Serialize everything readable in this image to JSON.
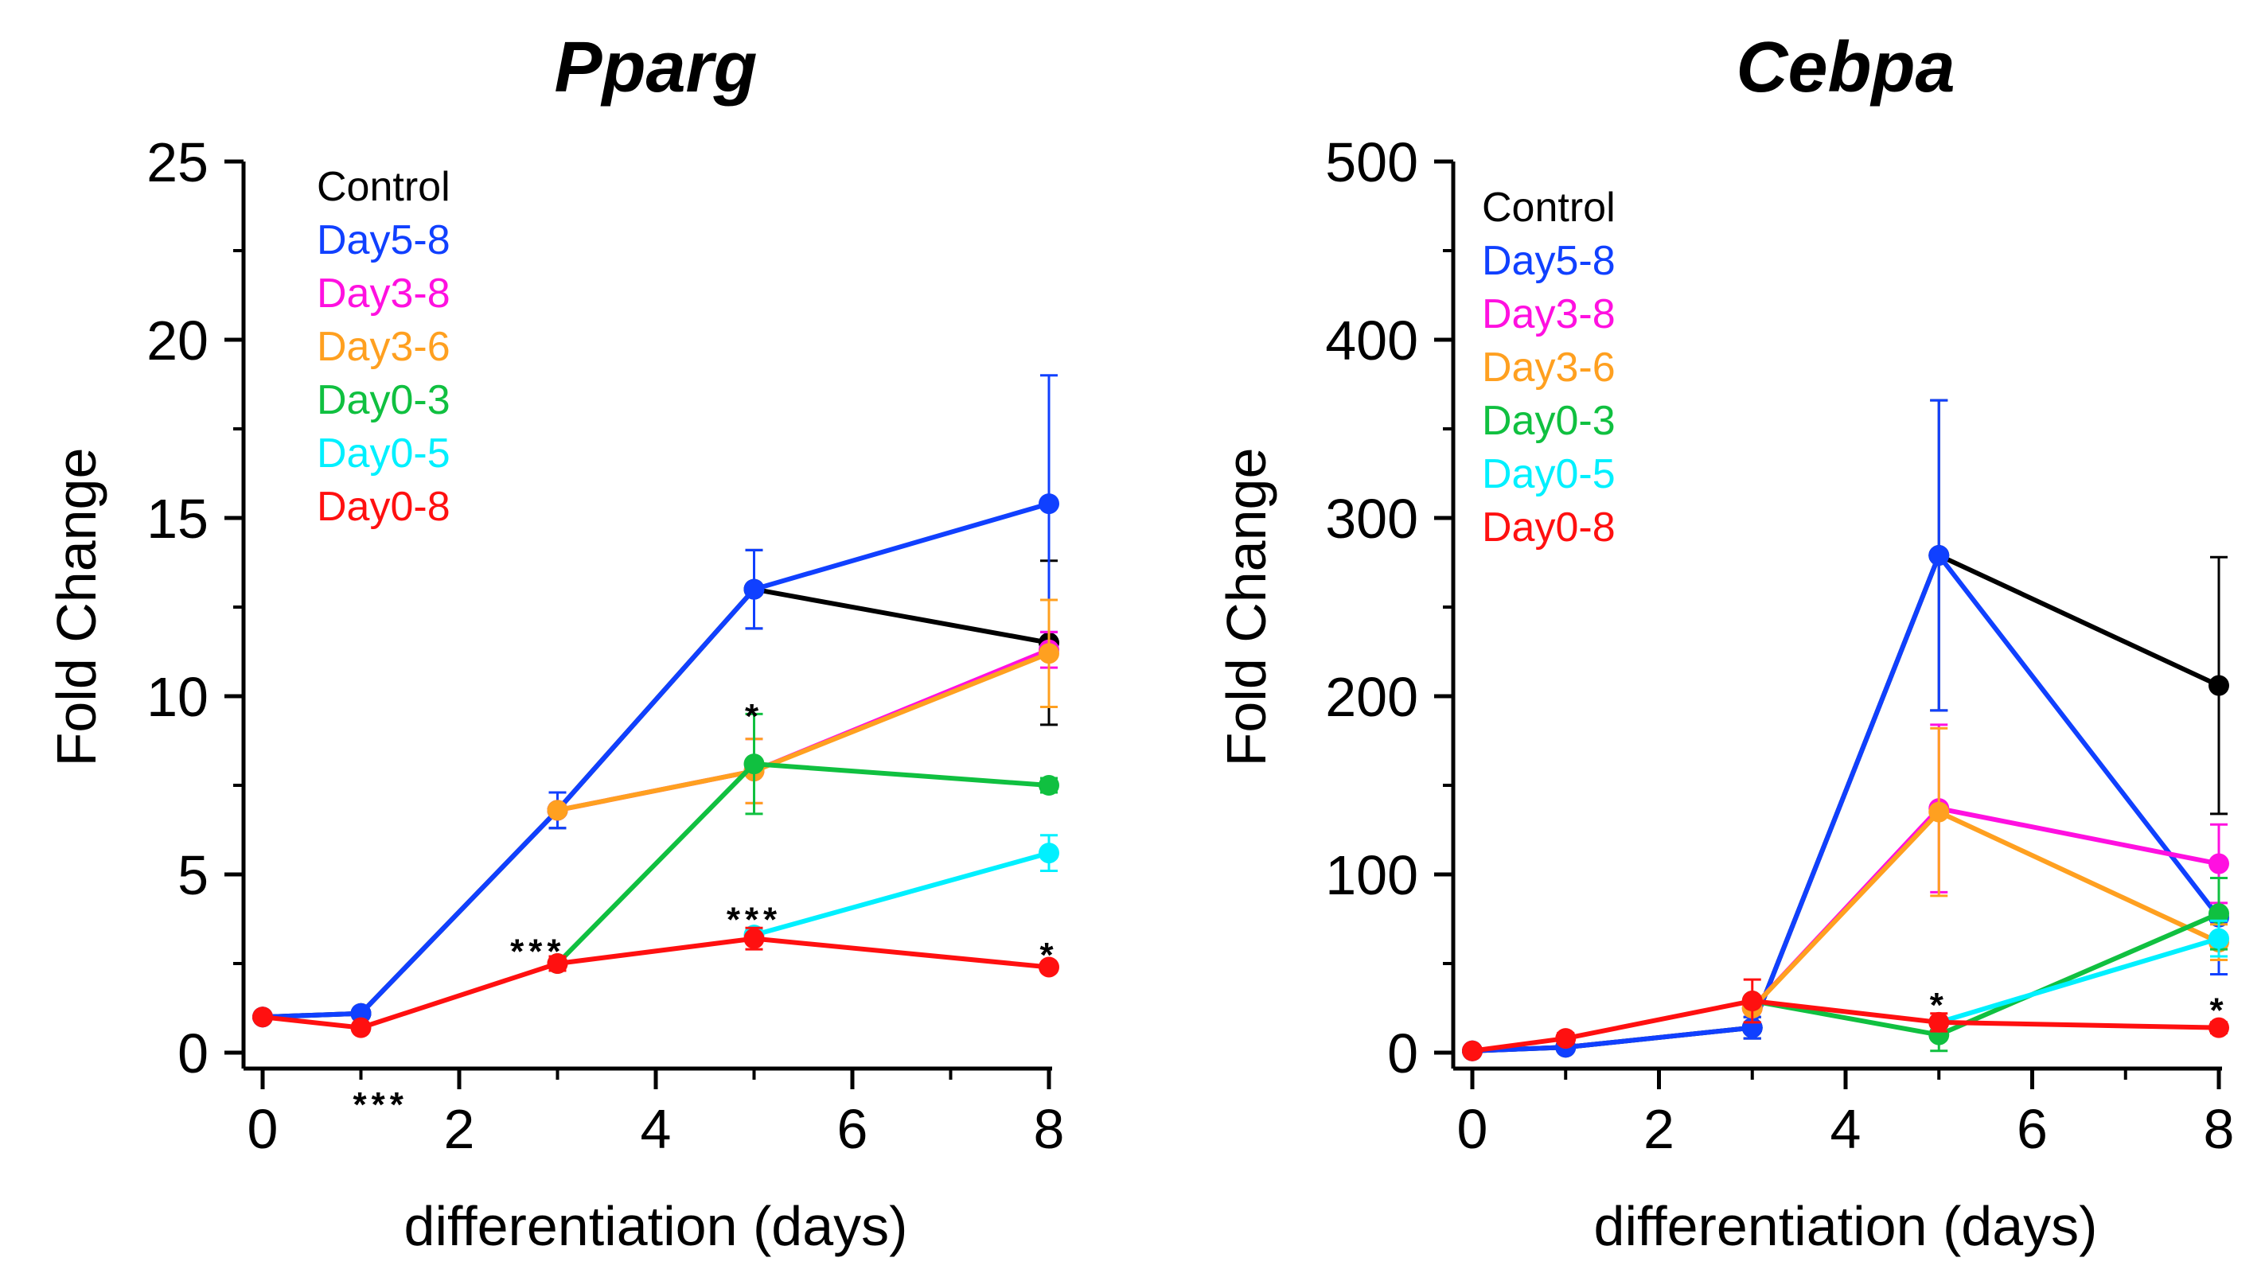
{
  "chart_data": [
    {
      "type": "line",
      "title": "Pparg",
      "xlabel": "differentiation (days)",
      "ylabel": "Fold Change",
      "xlim": [
        0,
        8
      ],
      "ylim": [
        0,
        25
      ],
      "xticks": [
        0,
        2,
        4,
        6,
        8
      ],
      "yticks": [
        0,
        5,
        10,
        15,
        20,
        25
      ],
      "grid": false,
      "legend_position": "top-left",
      "series": [
        {
          "name": "Control",
          "color": "#000000",
          "x": [
            0,
            1,
            3,
            5,
            8
          ],
          "y": [
            1,
            1.1,
            6.8,
            13,
            11.5
          ],
          "err": [
            0,
            0.1,
            0.5,
            1.1,
            2.3
          ]
        },
        {
          "name": "Day5-8",
          "color": "#1040ff",
          "x": [
            0,
            1,
            3,
            5,
            8
          ],
          "y": [
            1,
            1.1,
            6.8,
            13,
            15.4
          ],
          "err": [
            0,
            0.1,
            0.5,
            1.1,
            3.6
          ]
        },
        {
          "name": "Day3-8",
          "color": "#ff10e0",
          "x": [
            3,
            5,
            8
          ],
          "y": [
            6.8,
            7.9,
            11.3
          ],
          "err": [
            0,
            0.9,
            0.5
          ]
        },
        {
          "name": "Day3-6",
          "color": "#ffa020",
          "x": [
            3,
            5,
            8
          ],
          "y": [
            6.8,
            7.9,
            11.2
          ],
          "err": [
            0,
            0.9,
            1.5
          ]
        },
        {
          "name": "Day0-3",
          "color": "#10c040",
          "x": [
            3,
            5,
            8
          ],
          "y": [
            2.5,
            8.1,
            7.5
          ],
          "err": [
            0,
            1.4,
            0.2
          ]
        },
        {
          "name": "Day0-5",
          "color": "#00f0ff",
          "x": [
            5,
            8
          ],
          "y": [
            3.3,
            5.6
          ],
          "err": [
            0,
            0.5
          ]
        },
        {
          "name": "Day0-8",
          "color": "#ff1010",
          "x": [
            0,
            1,
            3,
            5,
            8
          ],
          "y": [
            1,
            0.7,
            2.5,
            3.2,
            2.4
          ],
          "err": [
            0,
            0.1,
            0.2,
            0.3,
            0.1
          ]
        }
      ],
      "annotations": [
        {
          "text": "***",
          "x": 1.2,
          "y": -1.3
        },
        {
          "text": "***",
          "x": 2.8,
          "y": 3.0
        },
        {
          "text": "*",
          "x": 5.0,
          "y": 9.6
        },
        {
          "text": "***",
          "x": 5.0,
          "y": 3.9
        },
        {
          "text": "*",
          "x": 8.0,
          "y": 2.9
        }
      ]
    },
    {
      "type": "line",
      "title": "Cebpa",
      "xlabel": "differentiation (days)",
      "ylabel": "Fold Change",
      "xlim": [
        0,
        8
      ],
      "ylim": [
        0,
        500
      ],
      "xticks": [
        0,
        2,
        4,
        6,
        8
      ],
      "yticks": [
        0,
        100,
        200,
        300,
        400,
        500
      ],
      "grid": false,
      "legend_position": "top-left",
      "series": [
        {
          "name": "Control",
          "color": "#000000",
          "x": [
            0,
            1,
            3,
            5,
            8
          ],
          "y": [
            1,
            3,
            14,
            279,
            206
          ],
          "err": [
            0,
            1,
            6,
            87,
            72
          ]
        },
        {
          "name": "Day5-8",
          "color": "#1040ff",
          "x": [
            0,
            1,
            3,
            5,
            8
          ],
          "y": [
            1,
            3,
            14,
            279,
            76
          ],
          "err": [
            0,
            1,
            6,
            87,
            32
          ]
        },
        {
          "name": "Day3-8",
          "color": "#ff10e0",
          "x": [
            3,
            5,
            8
          ],
          "y": [
            25,
            137,
            106
          ],
          "err": [
            0,
            47,
            22
          ]
        },
        {
          "name": "Day3-6",
          "color": "#ffa020",
          "x": [
            3,
            5,
            8
          ],
          "y": [
            25,
            135,
            62
          ],
          "err": [
            0,
            47,
            10
          ]
        },
        {
          "name": "Day0-3",
          "color": "#10c040",
          "x": [
            3,
            5,
            8
          ],
          "y": [
            29,
            10,
            78
          ],
          "err": [
            0,
            9,
            20
          ]
        },
        {
          "name": "Day0-5",
          "color": "#00f0ff",
          "x": [
            5,
            8
          ],
          "y": [
            17,
            64
          ],
          "err": [
            0,
            10
          ]
        },
        {
          "name": "Day0-8",
          "color": "#ff1010",
          "x": [
            0,
            1,
            3,
            5,
            8
          ],
          "y": [
            1,
            8,
            29,
            17,
            14
          ],
          "err": [
            0,
            3,
            12,
            5,
            3
          ]
        }
      ],
      "annotations": [
        {
          "text": "*",
          "x": 5.0,
          "y": 30
        },
        {
          "text": "*",
          "x": 8.0,
          "y": 27
        }
      ]
    }
  ]
}
